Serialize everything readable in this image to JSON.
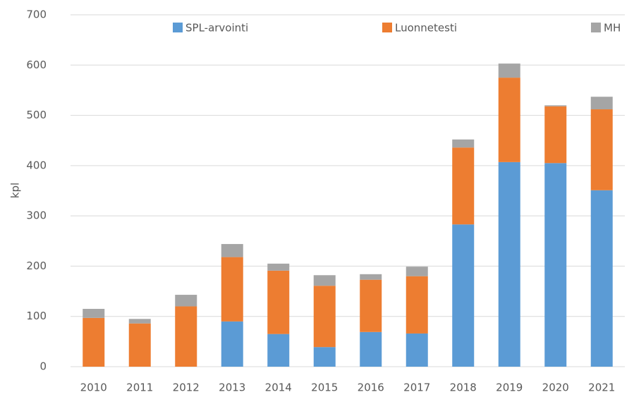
{
  "chart_data": {
    "type": "stacked_bar",
    "y_label": "kpl",
    "categories": [
      "2010",
      "2011",
      "2012",
      "2013",
      "2014",
      "2015",
      "2016",
      "2017",
      "2018",
      "2019",
      "2020",
      "2021"
    ],
    "series": [
      {
        "name": "SPL-arvointi",
        "color": "#5b9bd5",
        "values": [
          0,
          0,
          0,
          90,
          65,
          39,
          69,
          66,
          283,
          407,
          405,
          351
        ]
      },
      {
        "name": "Luonnetesti",
        "color": "#ed7d31",
        "values": [
          97,
          86,
          120,
          128,
          126,
          122,
          104,
          114,
          153,
          168,
          113,
          161
        ]
      },
      {
        "name": "MH",
        "color": "#a5a5a5",
        "values": [
          18,
          9,
          23,
          26,
          14,
          21,
          11,
          19,
          16,
          28,
          2,
          25
        ]
      }
    ],
    "ylim": [
      0,
      700
    ],
    "yticks": [
      0,
      100,
      200,
      300,
      400,
      500,
      600,
      700
    ],
    "grid": true,
    "legend": "top"
  }
}
